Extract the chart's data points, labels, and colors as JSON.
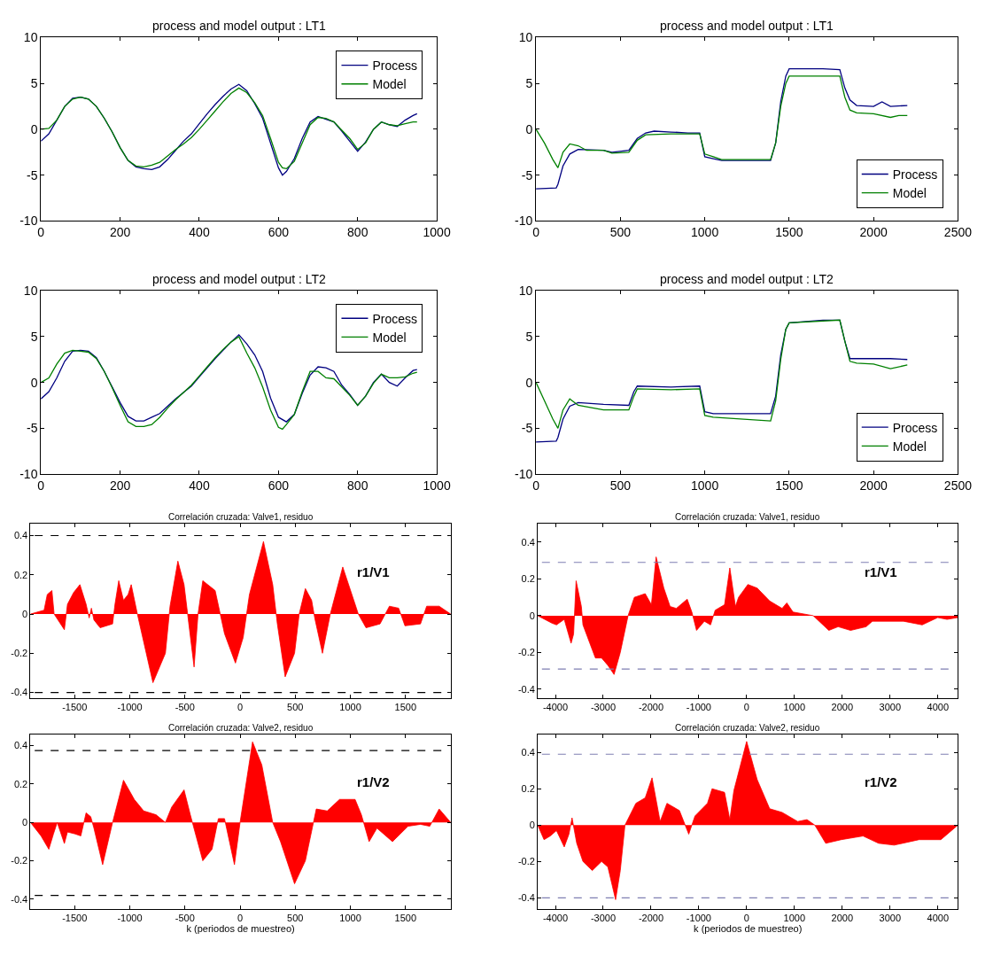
{
  "chart_data": [
    {
      "type": "line",
      "title": "process and model output : LT1",
      "xlim": [
        0,
        1000
      ],
      "ylim": [
        -10,
        10
      ],
      "xticks": [
        0,
        200,
        400,
        600,
        800,
        1000
      ],
      "yticks": [
        -10,
        -5,
        0,
        5,
        10
      ],
      "legend": "top right",
      "series": [
        {
          "name": "Process",
          "color": "#000080",
          "x": [
            0,
            20,
            40,
            60,
            80,
            100,
            120,
            140,
            160,
            180,
            200,
            220,
            240,
            260,
            280,
            300,
            320,
            340,
            360,
            380,
            400,
            420,
            440,
            460,
            480,
            500,
            520,
            540,
            560,
            580,
            600,
            610,
            620,
            640,
            660,
            680,
            700,
            720,
            740,
            760,
            780,
            800,
            820,
            840,
            860,
            880,
            900,
            920,
            940,
            950
          ],
          "values": [
            -1.3,
            -0.5,
            1,
            2.5,
            3.4,
            3.5,
            3.3,
            2.5,
            1.2,
            -0.3,
            -2,
            -3.4,
            -4.1,
            -4.3,
            -4.4,
            -4.1,
            -3.3,
            -2.3,
            -1.3,
            -0.5,
            0.6,
            1.7,
            2.7,
            3.6,
            4.4,
            4.9,
            4.2,
            2.8,
            1.2,
            -1.5,
            -4.2,
            -5,
            -4.6,
            -3.2,
            -1,
            0.8,
            1.4,
            1.1,
            0.8,
            -0.2,
            -1.3,
            -2.4,
            -1.4,
            0,
            0.8,
            0.5,
            0.3,
            1,
            1.5,
            1.7
          ]
        },
        {
          "name": "Model",
          "color": "#008000",
          "x": [
            0,
            20,
            40,
            60,
            80,
            100,
            120,
            140,
            160,
            180,
            200,
            220,
            240,
            260,
            280,
            300,
            320,
            340,
            360,
            380,
            400,
            420,
            440,
            460,
            480,
            500,
            520,
            540,
            560,
            580,
            600,
            610,
            620,
            640,
            660,
            680,
            700,
            720,
            740,
            760,
            780,
            800,
            820,
            840,
            860,
            880,
            900,
            920,
            940,
            950
          ],
          "values": [
            0,
            0.1,
            1,
            2.5,
            3.3,
            3.5,
            3.3,
            2.5,
            1.2,
            -0.3,
            -2,
            -3.4,
            -4,
            -4.1,
            -3.9,
            -3.6,
            -2.9,
            -2.2,
            -1.6,
            -0.9,
            0,
            1,
            2,
            3,
            3.9,
            4.5,
            4,
            2.9,
            1.5,
            -1,
            -3.6,
            -4.2,
            -4.3,
            -3.5,
            -1.5,
            0.5,
            1.3,
            1.2,
            0.8,
            -0.1,
            -1,
            -2.2,
            -1.5,
            0,
            0.8,
            0.5,
            0.4,
            0.6,
            0.8,
            0.8
          ]
        }
      ]
    },
    {
      "type": "line",
      "title": "process and model output : LT1",
      "xlim": [
        0,
        2500
      ],
      "ylim": [
        -10,
        10
      ],
      "xticks": [
        0,
        500,
        1000,
        1500,
        2000,
        2500
      ],
      "yticks": [
        -10,
        -5,
        0,
        5,
        10
      ],
      "legend": "bottom right",
      "series": [
        {
          "name": "Process",
          "color": "#000080",
          "x": [
            0,
            120,
            130,
            160,
            200,
            250,
            400,
            450,
            550,
            600,
            650,
            700,
            800,
            900,
            970,
            1000,
            1050,
            1100,
            1390,
            1420,
            1450,
            1480,
            1500,
            1600,
            1700,
            1800,
            1830,
            1860,
            1900,
            2000,
            2050,
            2100,
            2200
          ],
          "values": [
            -6.5,
            -6.4,
            -6,
            -4,
            -2.7,
            -2.2,
            -2.3,
            -2.5,
            -2.3,
            -1,
            -0.4,
            -0.2,
            -0.3,
            -0.4,
            -0.4,
            -3,
            -3.2,
            -3.4,
            -3.4,
            -1.5,
            3,
            5.8,
            6.6,
            6.6,
            6.6,
            6.5,
            4.5,
            3.2,
            2.6,
            2.5,
            3,
            2.5,
            2.6
          ]
        },
        {
          "name": "Model",
          "color": "#008000",
          "x": [
            0,
            50,
            100,
            130,
            160,
            200,
            250,
            300,
            400,
            450,
            550,
            600,
            650,
            800,
            970,
            1000,
            1050,
            1100,
            1390,
            1420,
            1450,
            1480,
            1500,
            1800,
            1830,
            1860,
            1900,
            2000,
            2100,
            2150,
            2200
          ],
          "values": [
            0,
            -1.5,
            -3.3,
            -4.2,
            -2.5,
            -1.6,
            -1.8,
            -2.3,
            -2.3,
            -2.6,
            -2.5,
            -1.2,
            -0.6,
            -0.5,
            -0.5,
            -2.7,
            -3,
            -3.3,
            -3.3,
            -1.5,
            2.5,
            5,
            5.8,
            5.8,
            3.5,
            2.1,
            1.8,
            1.7,
            1.3,
            1.5,
            1.5
          ]
        }
      ]
    },
    {
      "type": "line",
      "title": "process and model output : LT2",
      "xlim": [
        0,
        1000
      ],
      "ylim": [
        -10,
        10
      ],
      "xticks": [
        0,
        200,
        400,
        600,
        800,
        1000
      ],
      "yticks": [
        -10,
        -5,
        0,
        5,
        10
      ],
      "legend": "top right",
      "series": [
        {
          "name": "Process",
          "color": "#000080",
          "x": [
            0,
            20,
            40,
            60,
            80,
            100,
            120,
            140,
            160,
            180,
            200,
            220,
            240,
            260,
            280,
            300,
            320,
            340,
            360,
            380,
            400,
            420,
            440,
            460,
            480,
            500,
            520,
            540,
            560,
            580,
            600,
            620,
            640,
            660,
            680,
            700,
            720,
            740,
            760,
            780,
            800,
            820,
            840,
            860,
            880,
            900,
            920,
            940,
            950
          ],
          "values": [
            -1.8,
            -1,
            0.5,
            2.3,
            3.4,
            3.5,
            3.4,
            2.7,
            1.2,
            -0.5,
            -2.2,
            -3.7,
            -4.2,
            -4.2,
            -3.8,
            -3.4,
            -2.6,
            -1.8,
            -1.1,
            -0.4,
            0.6,
            1.6,
            2.6,
            3.5,
            4.4,
            5.2,
            4.2,
            3,
            1.2,
            -1.7,
            -3.8,
            -4.3,
            -3.5,
            -1.2,
            0.8,
            1.7,
            1.6,
            1.2,
            -0.3,
            -1.3,
            -2.5,
            -1.5,
            0,
            0.9,
            0,
            -0.4,
            0.5,
            1.3,
            1.4
          ]
        },
        {
          "name": "Model",
          "color": "#008000",
          "x": [
            0,
            20,
            40,
            60,
            80,
            100,
            120,
            140,
            160,
            180,
            200,
            220,
            240,
            260,
            280,
            300,
            320,
            340,
            360,
            380,
            400,
            420,
            440,
            460,
            480,
            500,
            520,
            540,
            560,
            580,
            600,
            610,
            620,
            640,
            660,
            680,
            700,
            720,
            740,
            760,
            780,
            800,
            820,
            840,
            860,
            880,
            900,
            920,
            940,
            950
          ],
          "values": [
            0,
            0.5,
            2,
            3.2,
            3.5,
            3.4,
            3.3,
            2.6,
            1.2,
            -0.6,
            -2.5,
            -4.3,
            -4.8,
            -4.8,
            -4.6,
            -3.8,
            -2.8,
            -1.9,
            -1.1,
            -0.3,
            0.7,
            1.7,
            2.7,
            3.6,
            4.4,
            5,
            3.2,
            1.6,
            -0.5,
            -3,
            -4.9,
            -5.1,
            -4.6,
            -3.5,
            -1,
            1.2,
            1.2,
            0.5,
            0.4,
            -0.5,
            -1.4,
            -2.5,
            -1.5,
            -0.1,
            0.9,
            0.5,
            0.5,
            0.6,
            1,
            1.1
          ]
        }
      ]
    },
    {
      "type": "line",
      "title": "process and model output : LT2",
      "xlim": [
        0,
        2500
      ],
      "ylim": [
        -10,
        10
      ],
      "xticks": [
        0,
        500,
        1000,
        1500,
        2000,
        2500
      ],
      "yticks": [
        -10,
        -5,
        0,
        5,
        10
      ],
      "legend": "bottom right",
      "series": [
        {
          "name": "Process",
          "color": "#000080",
          "x": [
            0,
            120,
            130,
            160,
            200,
            250,
            400,
            550,
            580,
            600,
            800,
            970,
            1000,
            1050,
            1390,
            1420,
            1450,
            1480,
            1500,
            1700,
            1800,
            1830,
            1860,
            1900,
            2000,
            2100,
            2200
          ],
          "values": [
            -6.5,
            -6.4,
            -6,
            -4,
            -2.6,
            -2.2,
            -2.4,
            -2.5,
            -1,
            -0.4,
            -0.5,
            -0.4,
            -3.2,
            -3.4,
            -3.4,
            -1.5,
            3,
            5.8,
            6.5,
            6.8,
            6.8,
            4.5,
            2.6,
            2.6,
            2.6,
            2.6,
            2.5
          ]
        },
        {
          "name": "Model",
          "color": "#008000",
          "x": [
            0,
            50,
            100,
            130,
            160,
            200,
            250,
            400,
            550,
            580,
            600,
            800,
            970,
            1000,
            1050,
            1390,
            1420,
            1450,
            1480,
            1500,
            1800,
            1830,
            1860,
            1900,
            2000,
            2100,
            2200
          ],
          "values": [
            0,
            -2,
            -4,
            -5,
            -3,
            -1.8,
            -2.5,
            -3,
            -3,
            -1.5,
            -0.7,
            -0.8,
            -0.7,
            -3.6,
            -3.8,
            -4.2,
            -2,
            2.5,
            5.8,
            6.5,
            6.8,
            4.5,
            2.3,
            2.1,
            2,
            1.5,
            1.9
          ]
        }
      ]
    },
    {
      "type": "area",
      "title": "Correlación cruzada: Valve1, residuo",
      "xlim": [
        -1900,
        1910
      ],
      "ylim": [
        -0.43,
        0.46
      ],
      "xticks": [
        -1500,
        -1000,
        -500,
        0,
        500,
        1000,
        1500
      ],
      "yticks": [
        -0.4,
        -0.2,
        0,
        0.2,
        0.4
      ],
      "annotations": [
        "r1/V1"
      ],
      "ref_lines": [
        {
          "axis": "y",
          "value": 0.4,
          "color": "#000000",
          "line_style": "dashed"
        },
        {
          "axis": "y",
          "value": -0.4,
          "color": "#000000",
          "line_style": "dashed"
        }
      ],
      "series": [
        {
          "color": "#ff0000",
          "x": [
            -1900,
            -1777,
            -1748,
            -1706,
            -1686,
            -1593,
            -1565,
            -1509,
            -1452,
            -1396,
            -1368,
            -1348,
            -1325,
            -1269,
            -1156,
            -1134,
            -1100,
            -1057,
            -1015,
            -987,
            -931,
            -790,
            -677,
            -635,
            -564,
            -508,
            -417,
            -381,
            -338,
            -226,
            -141,
            -42,
            28,
            85,
            212,
            296,
            338,
            409,
            494,
            536,
            592,
            649,
            677,
            747,
            818,
            931,
            1043,
            1072,
            1142,
            1269,
            1354,
            1438,
            1495,
            1636,
            1692,
            1805,
            1910
          ],
          "values": [
            0,
            0.02,
            0.1,
            0.12,
            0,
            -0.08,
            0.05,
            0.11,
            0.15,
            0.05,
            -0.02,
            0.03,
            -0.03,
            -0.07,
            -0.05,
            0.05,
            0.17,
            0.07,
            0.1,
            0.15,
            0,
            -0.35,
            -0.2,
            0.04,
            0.27,
            0.15,
            -0.27,
            0,
            0.17,
            0.12,
            -0.1,
            -0.25,
            -0.12,
            0.1,
            0.37,
            0.15,
            -0.05,
            -0.32,
            -0.2,
            0,
            0.13,
            0.07,
            -0.02,
            -0.2,
            0,
            0.24,
            0.05,
            0,
            -0.07,
            -0.05,
            0.04,
            0.03,
            -0.06,
            -0.05,
            0.04,
            0.04,
            0
          ]
        }
      ]
    },
    {
      "type": "area",
      "title": "Correlación cruzada: Valve1, residuo",
      "xlim": [
        -4370,
        4420
      ],
      "ylim": [
        -0.45,
        0.5
      ],
      "xticks": [
        -4000,
        -3000,
        -2000,
        -1000,
        0,
        1000,
        2000,
        3000,
        4000
      ],
      "yticks": [
        -0.4,
        -0.2,
        0,
        0.2,
        0.4
      ],
      "annotations": [
        "r1/V1"
      ],
      "ref_lines": [
        {
          "axis": "y",
          "value": 0.29,
          "color": "#7f7fb2",
          "line_style": "dashed"
        },
        {
          "axis": "y",
          "value": -0.29,
          "color": "#7f7fb2",
          "line_style": "dashed"
        }
      ],
      "series": [
        {
          "color": "#ff0000",
          "x": [
            -4370,
            -4075,
            -3978,
            -3815,
            -3672,
            -3620,
            -3567,
            -3457,
            -3424,
            -3164,
            -3034,
            -2903,
            -2773,
            -2643,
            -2480,
            -2350,
            -2122,
            -1992,
            -1894,
            -1732,
            -1601,
            -1471,
            -1243,
            -1146,
            -1048,
            -885,
            -755,
            -658,
            -462,
            -352,
            -234,
            -169,
            26,
            221,
            482,
            742,
            840,
            970,
            1393,
            1719,
            1914,
            2174,
            2500,
            2630,
            3281,
            3672,
            3997,
            4192,
            4420
          ],
          "values": [
            0,
            -0.04,
            -0.05,
            -0.02,
            -0.15,
            -0.1,
            0.19,
            0.05,
            -0.05,
            -0.23,
            -0.23,
            -0.27,
            -0.32,
            -0.2,
            0,
            0.1,
            0.12,
            0.06,
            0.32,
            0.15,
            0.05,
            0.04,
            0.09,
            0.02,
            -0.08,
            -0.03,
            -0.05,
            0.03,
            0.06,
            0.26,
            0.05,
            0.1,
            0.17,
            0.15,
            0.08,
            0.04,
            0.07,
            0.02,
            0,
            -0.08,
            -0.06,
            -0.08,
            -0.06,
            -0.03,
            -0.03,
            -0.05,
            -0.01,
            -0.02,
            -0.01
          ]
        }
      ]
    },
    {
      "type": "area",
      "title": "Correlación cruzada: Valve2, residuo",
      "xlabel": "k (periodos de muestreo)",
      "xlim": [
        -1900,
        1910
      ],
      "ylim": [
        -0.45,
        0.46
      ],
      "xticks": [
        -1500,
        -1000,
        -500,
        0,
        500,
        1000,
        1500
      ],
      "yticks": [
        -0.4,
        -0.2,
        0,
        0.2,
        0.4
      ],
      "annotations": [
        "r1/V2"
      ],
      "ref_lines": [
        {
          "axis": "y",
          "value": 0.375,
          "color": "#000000",
          "line_style": "dashed"
        },
        {
          "axis": "y",
          "value": -0.38,
          "color": "#000000",
          "line_style": "dashed"
        }
      ],
      "series": [
        {
          "color": "#ff0000",
          "x": [
            -1900,
            -1805,
            -1734,
            -1692,
            -1658,
            -1593,
            -1565,
            -1495,
            -1444,
            -1396,
            -1354,
            -1325,
            -1246,
            -1156,
            -1057,
            -959,
            -874,
            -762,
            -677,
            -620,
            -508,
            -451,
            -338,
            -254,
            -197,
            -141,
            -51,
            0,
            113,
            197,
            296,
            367,
            494,
            592,
            691,
            790,
            902,
            1043,
            1100,
            1170,
            1241,
            1382,
            1523,
            1636,
            1720,
            1805,
            1910
          ],
          "values": [
            0,
            -0.07,
            -0.14,
            -0.06,
            0,
            -0.11,
            -0.05,
            -0.06,
            -0.07,
            0.05,
            0.03,
            -0.03,
            -0.22,
            0,
            0.22,
            0.12,
            0.06,
            0.04,
            0,
            0.08,
            0.17,
            0.04,
            -0.2,
            -0.14,
            0.02,
            0.02,
            -0.22,
            0,
            0.42,
            0.3,
            0,
            -0.1,
            -0.32,
            -0.2,
            0.07,
            0.06,
            0.12,
            0.12,
            0.04,
            -0.1,
            -0.03,
            -0.1,
            -0.02,
            -0.01,
            -0.02,
            0.07,
            0
          ]
        }
      ]
    },
    {
      "type": "area",
      "title": "Correlación cruzada: Valve2, residuo",
      "xlabel": "k (periodos de muestreo)",
      "xlim": [
        -4370,
        4420
      ],
      "ylim": [
        -0.46,
        0.5
      ],
      "xticks": [
        -4000,
        -3000,
        -2000,
        -1000,
        0,
        1000,
        2000,
        3000,
        4000
      ],
      "yticks": [
        -0.4,
        -0.2,
        0,
        0.2,
        0.4
      ],
      "annotations": [
        "r1/V2"
      ],
      "ref_lines": [
        {
          "axis": "y",
          "value": 0.39,
          "color": "#7f7fb2",
          "line_style": "dashed"
        },
        {
          "axis": "y",
          "value": -0.4,
          "color": "#7f7fb2",
          "line_style": "dashed"
        }
      ],
      "series": [
        {
          "color": "#ff0000",
          "x": [
            -4370,
            -4238,
            -4108,
            -3978,
            -3815,
            -3717,
            -3652,
            -3554,
            -3424,
            -3229,
            -3034,
            -2903,
            -2741,
            -2643,
            -2545,
            -2317,
            -2122,
            -1979,
            -1810,
            -1667,
            -1406,
            -1211,
            -1081,
            -820,
            -723,
            -462,
            -352,
            -267,
            0,
            221,
            482,
            742,
            1068,
            1263,
            1426,
            1654,
            1979,
            2435,
            2760,
            3086,
            3607,
            4062,
            4420
          ],
          "values": [
            0,
            -0.08,
            -0.06,
            -0.03,
            -0.12,
            -0.05,
            0.04,
            -0.1,
            -0.2,
            -0.25,
            -0.2,
            -0.23,
            -0.41,
            -0.25,
            0,
            0.12,
            0.15,
            0.26,
            0.02,
            0.12,
            0.08,
            -0.05,
            0.05,
            0.12,
            0.2,
            0.18,
            0.03,
            0.19,
            0.46,
            0.25,
            0.09,
            0.07,
            0.02,
            0.03,
            0,
            -0.1,
            -0.08,
            -0.06,
            -0.1,
            -0.11,
            -0.08,
            -0.08,
            0
          ]
        }
      ]
    }
  ]
}
